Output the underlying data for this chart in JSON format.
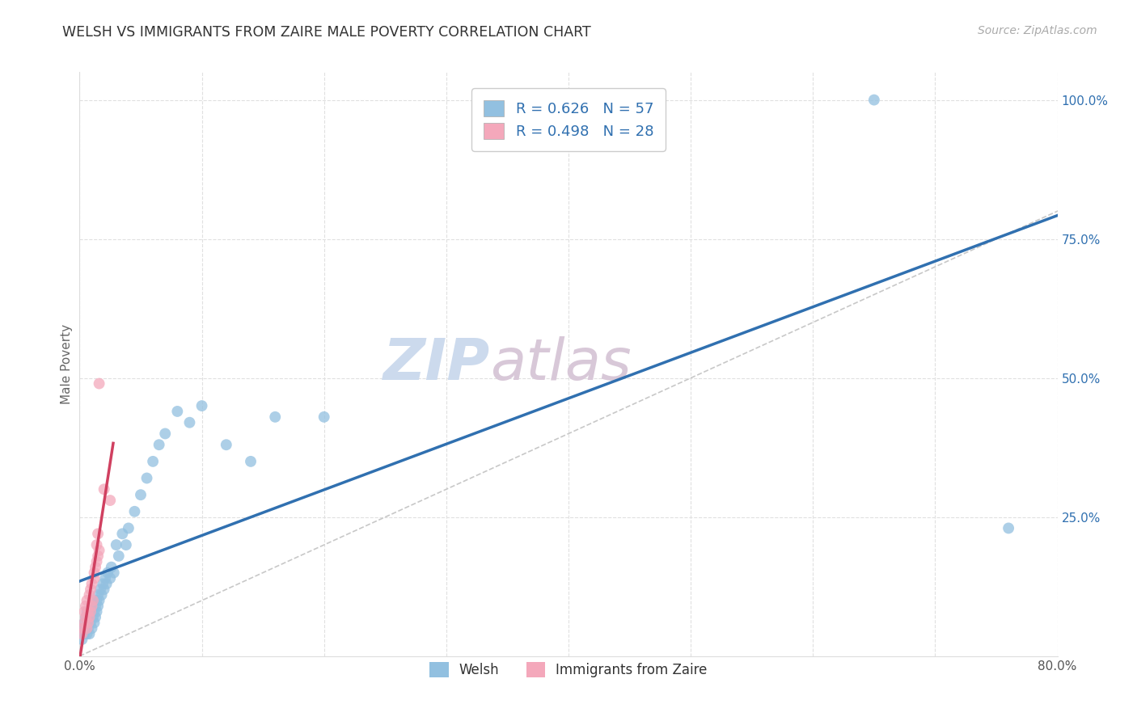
{
  "title": "WELSH VS IMMIGRANTS FROM ZAIRE MALE POVERTY CORRELATION CHART",
  "source": "Source: ZipAtlas.com",
  "ylabel": "Male Poverty",
  "xlim": [
    0.0,
    0.8
  ],
  "ylim": [
    0.0,
    1.05
  ],
  "x_ticks": [
    0.0,
    0.1,
    0.2,
    0.3,
    0.4,
    0.5,
    0.6,
    0.7,
    0.8
  ],
  "x_tick_labels": [
    "0.0%",
    "",
    "",
    "",
    "",
    "",
    "",
    "",
    "80.0%"
  ],
  "y_ticks": [
    0.0,
    0.25,
    0.5,
    0.75,
    1.0
  ],
  "y_tick_labels": [
    "",
    "25.0%",
    "50.0%",
    "75.0%",
    "100.0%"
  ],
  "blue_color": "#92c0e0",
  "pink_color": "#f4a8bb",
  "blue_line_color": "#3070b0",
  "pink_line_color": "#d04060",
  "diag_color": "#c8c8c8",
  "watermark_zip_color": "#ccdaed",
  "watermark_atlas_color": "#d8c8d8",
  "R_welsh": 0.626,
  "N_welsh": 57,
  "R_zaire": 0.498,
  "N_zaire": 28,
  "legend_label_welsh": "Welsh",
  "legend_label_zaire": "Immigrants from Zaire",
  "welsh_x": [
    0.002,
    0.003,
    0.004,
    0.004,
    0.005,
    0.005,
    0.006,
    0.006,
    0.007,
    0.007,
    0.008,
    0.008,
    0.009,
    0.009,
    0.01,
    0.01,
    0.011,
    0.011,
    0.012,
    0.012,
    0.013,
    0.013,
    0.014,
    0.014,
    0.015,
    0.015,
    0.016,
    0.017,
    0.018,
    0.019,
    0.02,
    0.021,
    0.022,
    0.023,
    0.025,
    0.026,
    0.028,
    0.03,
    0.032,
    0.035,
    0.038,
    0.04,
    0.045,
    0.05,
    0.055,
    0.06,
    0.065,
    0.07,
    0.08,
    0.09,
    0.1,
    0.12,
    0.14,
    0.16,
    0.2,
    0.65,
    0.76
  ],
  "welsh_y": [
    0.03,
    0.05,
    0.04,
    0.06,
    0.05,
    0.07,
    0.04,
    0.08,
    0.05,
    0.06,
    0.04,
    0.07,
    0.06,
    0.08,
    0.05,
    0.09,
    0.07,
    0.1,
    0.06,
    0.08,
    0.07,
    0.09,
    0.08,
    0.1,
    0.09,
    0.11,
    0.1,
    0.12,
    0.11,
    0.13,
    0.12,
    0.14,
    0.13,
    0.15,
    0.14,
    0.16,
    0.15,
    0.2,
    0.18,
    0.22,
    0.2,
    0.23,
    0.26,
    0.29,
    0.32,
    0.35,
    0.38,
    0.4,
    0.44,
    0.42,
    0.45,
    0.38,
    0.35,
    0.43,
    0.43,
    1.0,
    0.23
  ],
  "zaire_x": [
    0.002,
    0.003,
    0.004,
    0.004,
    0.005,
    0.005,
    0.006,
    0.006,
    0.007,
    0.007,
    0.008,
    0.008,
    0.009,
    0.009,
    0.01,
    0.01,
    0.011,
    0.012,
    0.012,
    0.013,
    0.014,
    0.014,
    0.015,
    0.015,
    0.016,
    0.016,
    0.02,
    0.025
  ],
  "zaire_y": [
    0.04,
    0.05,
    0.06,
    0.08,
    0.07,
    0.09,
    0.05,
    0.1,
    0.06,
    0.08,
    0.07,
    0.11,
    0.08,
    0.12,
    0.09,
    0.13,
    0.1,
    0.14,
    0.15,
    0.16,
    0.17,
    0.2,
    0.18,
    0.22,
    0.49,
    0.19,
    0.3,
    0.28
  ]
}
